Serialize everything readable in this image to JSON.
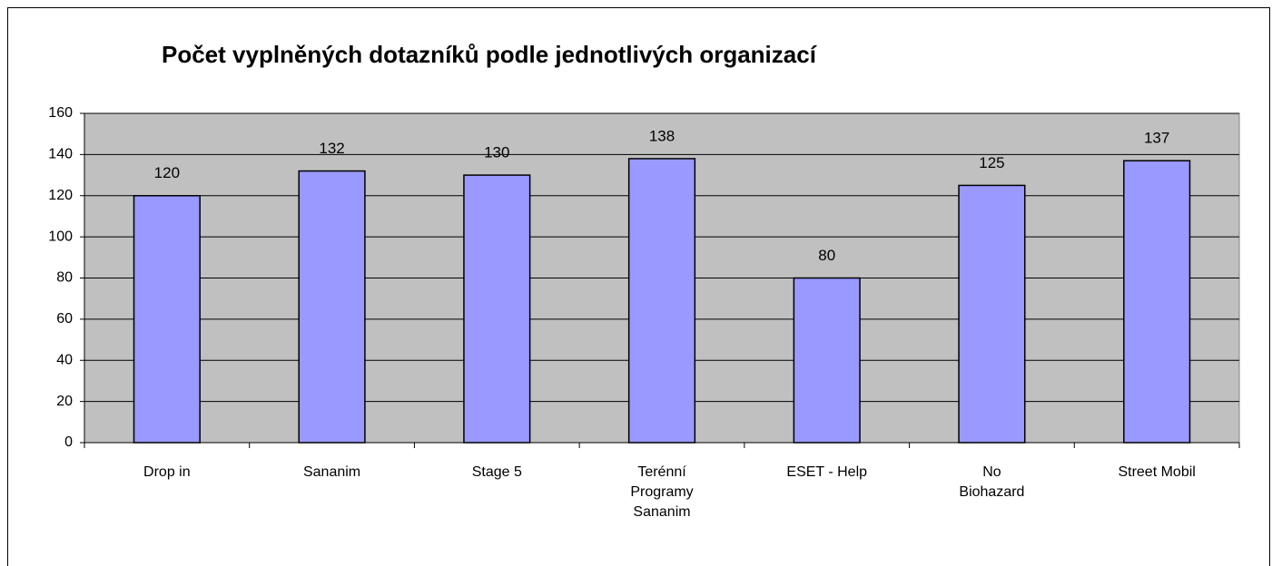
{
  "chart_data": {
    "type": "bar",
    "title": "Počet vyplněných dotazníků podle jednotlivých organizací",
    "categories": [
      "Drop in",
      "Sananim",
      "Stage 5",
      "Terénní Programy Sananim",
      "ESET - Help",
      "No Biohazard",
      "Street Mobil"
    ],
    "values": [
      120,
      132,
      130,
      138,
      80,
      125,
      137
    ],
    "color": "#9999ff",
    "ylim": [
      0,
      160
    ],
    "yticks": [
      0,
      20,
      40,
      60,
      80,
      100,
      120,
      140,
      160
    ],
    "grid": true
  }
}
